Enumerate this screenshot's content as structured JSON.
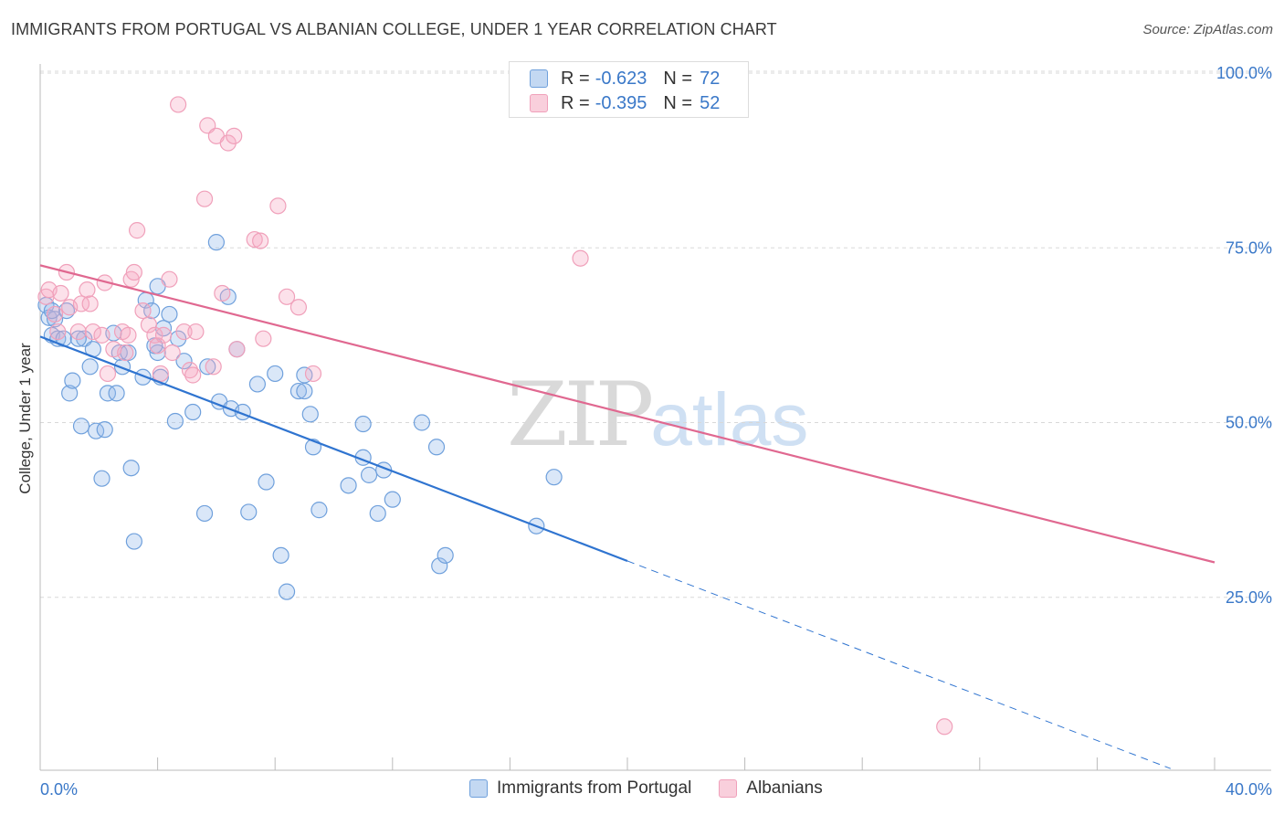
{
  "title": "IMMIGRANTS FROM PORTUGAL VS ALBANIAN COLLEGE, UNDER 1 YEAR CORRELATION CHART",
  "source": "Source: ZipAtlas.com",
  "watermark": {
    "zip": "ZIP",
    "atlas": "atlas"
  },
  "legend_top": {
    "rows": [
      {
        "r_label": "R =",
        "r_value": "-0.623",
        "n_label": "N =",
        "n_value": "72",
        "color": "#6fa0dc"
      },
      {
        "r_label": "R =",
        "r_value": "-0.395",
        "n_label": "N =",
        "n_value": "52",
        "color": "#f0a0ba"
      }
    ]
  },
  "legend_bottom": [
    "Immigrants from Portugal",
    "Albanians"
  ],
  "chart_data": {
    "type": "scatter",
    "title": "IMMIGRANTS FROM PORTUGAL VS ALBANIAN COLLEGE, UNDER 1 YEAR CORRELATION CHART",
    "xlabel": "",
    "ylabel": "College, Under 1 year",
    "xlim": [
      0,
      40
    ],
    "ylim": [
      0,
      102
    ],
    "x_tick_labels": [
      "0.0%",
      "40.0%"
    ],
    "y_ticks": [
      25,
      50,
      75,
      100
    ],
    "y_tick_labels": [
      "25.0%",
      "50.0%",
      "75.0%",
      "100.0%"
    ],
    "grid": "horizontal dashed",
    "legend_position": "top-center and bottom",
    "colors": {
      "blue": "#6fa0dc",
      "blue_line": "#2f74d0",
      "pink": "#f0a0ba",
      "pink_line": "#e06890"
    },
    "series": [
      {
        "name": "Immigrants from Portugal",
        "color": "#6fa0dc",
        "stats": {
          "R": -0.623,
          "N": 72
        },
        "trend": {
          "x0": 0,
          "y0": 62.3,
          "x1": 20,
          "y1": 30.2,
          "dashed_to_x": 38.5,
          "dashed_to_y": 0.5
        },
        "points": [
          [
            0.2,
            66.8
          ],
          [
            0.3,
            65.0
          ],
          [
            0.4,
            62.5
          ],
          [
            0.5,
            64.8
          ],
          [
            0.6,
            62.0
          ],
          [
            0.8,
            62.0
          ],
          [
            1.0,
            54.2
          ],
          [
            1.1,
            56.0
          ],
          [
            1.4,
            49.5
          ],
          [
            1.5,
            62.0
          ],
          [
            1.7,
            58.0
          ],
          [
            1.8,
            60.5
          ],
          [
            1.9,
            48.8
          ],
          [
            2.1,
            42.0
          ],
          [
            2.2,
            49.0
          ],
          [
            2.3,
            54.2
          ],
          [
            2.5,
            62.8
          ],
          [
            2.6,
            54.2
          ],
          [
            2.7,
            60.0
          ],
          [
            2.8,
            58.0
          ],
          [
            3.0,
            60.0
          ],
          [
            3.1,
            43.5
          ],
          [
            3.2,
            33.0
          ],
          [
            3.5,
            56.5
          ],
          [
            3.6,
            67.5
          ],
          [
            3.8,
            66.0
          ],
          [
            4.0,
            60.0
          ],
          [
            4.0,
            69.5
          ],
          [
            4.1,
            56.5
          ],
          [
            4.2,
            63.5
          ],
          [
            4.4,
            65.5
          ],
          [
            4.6,
            50.2
          ],
          [
            4.7,
            62.0
          ],
          [
            4.9,
            58.8
          ],
          [
            5.2,
            51.5
          ],
          [
            5.6,
            37.0
          ],
          [
            5.7,
            58.0
          ],
          [
            6.0,
            75.8
          ],
          [
            6.1,
            53.0
          ],
          [
            6.4,
            68.0
          ],
          [
            6.5,
            52.0
          ],
          [
            6.7,
            60.5
          ],
          [
            6.9,
            51.5
          ],
          [
            7.1,
            37.2
          ],
          [
            7.4,
            55.5
          ],
          [
            7.7,
            41.5
          ],
          [
            8.0,
            57.0
          ],
          [
            8.2,
            31.0
          ],
          [
            8.4,
            25.8
          ],
          [
            8.8,
            54.5
          ],
          [
            9.0,
            56.8
          ],
          [
            9.2,
            51.2
          ],
          [
            9.3,
            46.5
          ],
          [
            9.5,
            37.5
          ],
          [
            10.5,
            41.0
          ],
          [
            11.0,
            45.0
          ],
          [
            11.2,
            42.5
          ],
          [
            11.5,
            37.0
          ],
          [
            12.0,
            39.0
          ],
          [
            13.0,
            50.0
          ],
          [
            13.5,
            46.5
          ],
          [
            13.6,
            29.5
          ],
          [
            13.8,
            31.0
          ],
          [
            16.9,
            35.2
          ],
          [
            17.5,
            42.2
          ],
          [
            11.0,
            49.8
          ],
          [
            11.7,
            43.2
          ],
          [
            9.0,
            54.5
          ],
          [
            0.9,
            66.0
          ],
          [
            1.3,
            62.0
          ],
          [
            0.4,
            66.0
          ],
          [
            3.9,
            61.0
          ]
        ]
      },
      {
        "name": "Albanians",
        "color": "#f0a0ba",
        "stats": {
          "R": -0.395,
          "N": 52
        },
        "trend": {
          "x0": 0,
          "y0": 72.5,
          "x1": 40,
          "y1": 30.0
        },
        "points": [
          [
            0.2,
            68.0
          ],
          [
            0.3,
            69.0
          ],
          [
            0.5,
            65.5
          ],
          [
            0.6,
            63.0
          ],
          [
            0.7,
            68.5
          ],
          [
            0.9,
            71.5
          ],
          [
            1.0,
            66.5
          ],
          [
            1.3,
            63.0
          ],
          [
            1.4,
            67.0
          ],
          [
            1.6,
            69.0
          ],
          [
            1.7,
            67.0
          ],
          [
            1.8,
            63.0
          ],
          [
            2.1,
            62.5
          ],
          [
            2.2,
            70.0
          ],
          [
            2.3,
            57.0
          ],
          [
            2.5,
            60.5
          ],
          [
            2.8,
            63.0
          ],
          [
            2.9,
            60.0
          ],
          [
            3.0,
            62.5
          ],
          [
            3.1,
            70.5
          ],
          [
            3.2,
            71.5
          ],
          [
            3.3,
            77.5
          ],
          [
            3.5,
            66.0
          ],
          [
            3.7,
            64.0
          ],
          [
            3.9,
            62.5
          ],
          [
            4.0,
            61.0
          ],
          [
            4.1,
            57.0
          ],
          [
            4.2,
            62.5
          ],
          [
            4.4,
            70.5
          ],
          [
            4.5,
            60.0
          ],
          [
            4.7,
            95.5
          ],
          [
            4.9,
            63.0
          ],
          [
            5.1,
            57.5
          ],
          [
            5.2,
            56.8
          ],
          [
            5.3,
            63.0
          ],
          [
            5.6,
            82.0
          ],
          [
            5.7,
            92.5
          ],
          [
            5.9,
            58.0
          ],
          [
            6.0,
            91.0
          ],
          [
            6.2,
            68.5
          ],
          [
            6.4,
            90.0
          ],
          [
            6.6,
            91.0
          ],
          [
            6.7,
            60.5
          ],
          [
            7.3,
            76.2
          ],
          [
            7.5,
            76.0
          ],
          [
            7.6,
            62.0
          ],
          [
            8.1,
            81.0
          ],
          [
            8.4,
            68.0
          ],
          [
            8.8,
            66.5
          ],
          [
            9.3,
            57.0
          ],
          [
            18.4,
            73.5
          ],
          [
            30.8,
            6.5
          ]
        ]
      }
    ]
  }
}
